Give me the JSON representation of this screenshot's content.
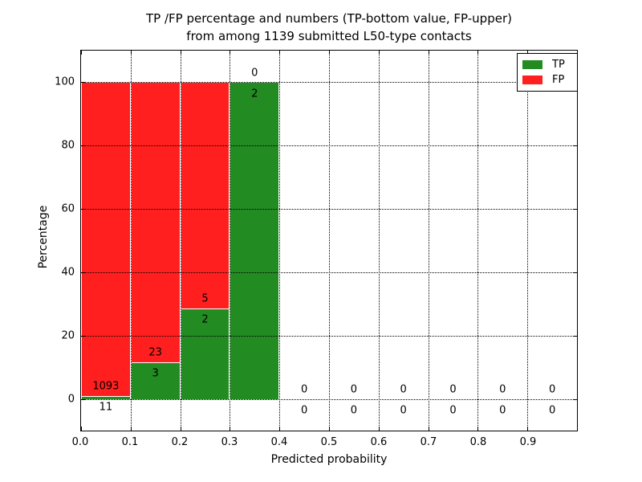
{
  "chart_data": {
    "type": "bar",
    "stacked": true,
    "title_line1": "TP /FP percentage and numbers (TP-bottom value, FP-upper)",
    "title_line2": "from among 1139 submitted L50-type contacts",
    "xlabel": "Predicted probability",
    "ylabel": "Percentage",
    "total_submitted_contacts": 1139,
    "xlim": [
      0.0,
      1.0
    ],
    "ylim": [
      -10,
      110
    ],
    "x_ticks": [
      0.0,
      0.1,
      0.2,
      0.3,
      0.4,
      0.5,
      0.6,
      0.7,
      0.8,
      0.9
    ],
    "x_tick_labels": [
      "0.0",
      "0.1",
      "0.2",
      "0.3",
      "0.4",
      "0.5",
      "0.6",
      "0.7",
      "0.8",
      "0.9"
    ],
    "y_ticks": [
      0,
      20,
      40,
      60,
      80,
      100
    ],
    "y_tick_labels": [
      "0",
      "20",
      "40",
      "60",
      "80",
      "100"
    ],
    "grid": "dotted-on-top",
    "legend_position": "upper-right",
    "legend": [
      {
        "label": "TP",
        "color": "#228b22"
      },
      {
        "label": "FP",
        "color": "#ff1f1f"
      }
    ],
    "bins": [
      {
        "x0": 0.0,
        "x1": 0.1,
        "tp": 11,
        "fp": 1093,
        "tp_pct": 1.0,
        "fp_pct": 99.0
      },
      {
        "x0": 0.1,
        "x1": 0.2,
        "tp": 3,
        "fp": 23,
        "tp_pct": 11.54,
        "fp_pct": 88.46
      },
      {
        "x0": 0.2,
        "x1": 0.3,
        "tp": 2,
        "fp": 5,
        "tp_pct": 28.57,
        "fp_pct": 71.43
      },
      {
        "x0": 0.3,
        "x1": 0.4,
        "tp": 2,
        "fp": 0,
        "tp_pct": 100.0,
        "fp_pct": 0.0
      },
      {
        "x0": 0.4,
        "x1": 0.5,
        "tp": 0,
        "fp": 0,
        "tp_pct": 0.0,
        "fp_pct": 0.0
      },
      {
        "x0": 0.5,
        "x1": 0.6,
        "tp": 0,
        "fp": 0,
        "tp_pct": 0.0,
        "fp_pct": 0.0
      },
      {
        "x0": 0.6,
        "x1": 0.7,
        "tp": 0,
        "fp": 0,
        "tp_pct": 0.0,
        "fp_pct": 0.0
      },
      {
        "x0": 0.7,
        "x1": 0.8,
        "tp": 0,
        "fp": 0,
        "tp_pct": 0.0,
        "fp_pct": 0.0
      },
      {
        "x0": 0.8,
        "x1": 0.9,
        "tp": 0,
        "fp": 0,
        "tp_pct": 0.0,
        "fp_pct": 0.0
      },
      {
        "x0": 0.9,
        "x1": 1.0,
        "tp": 0,
        "fp": 0,
        "tp_pct": 0.0,
        "fp_pct": 0.0
      }
    ]
  }
}
